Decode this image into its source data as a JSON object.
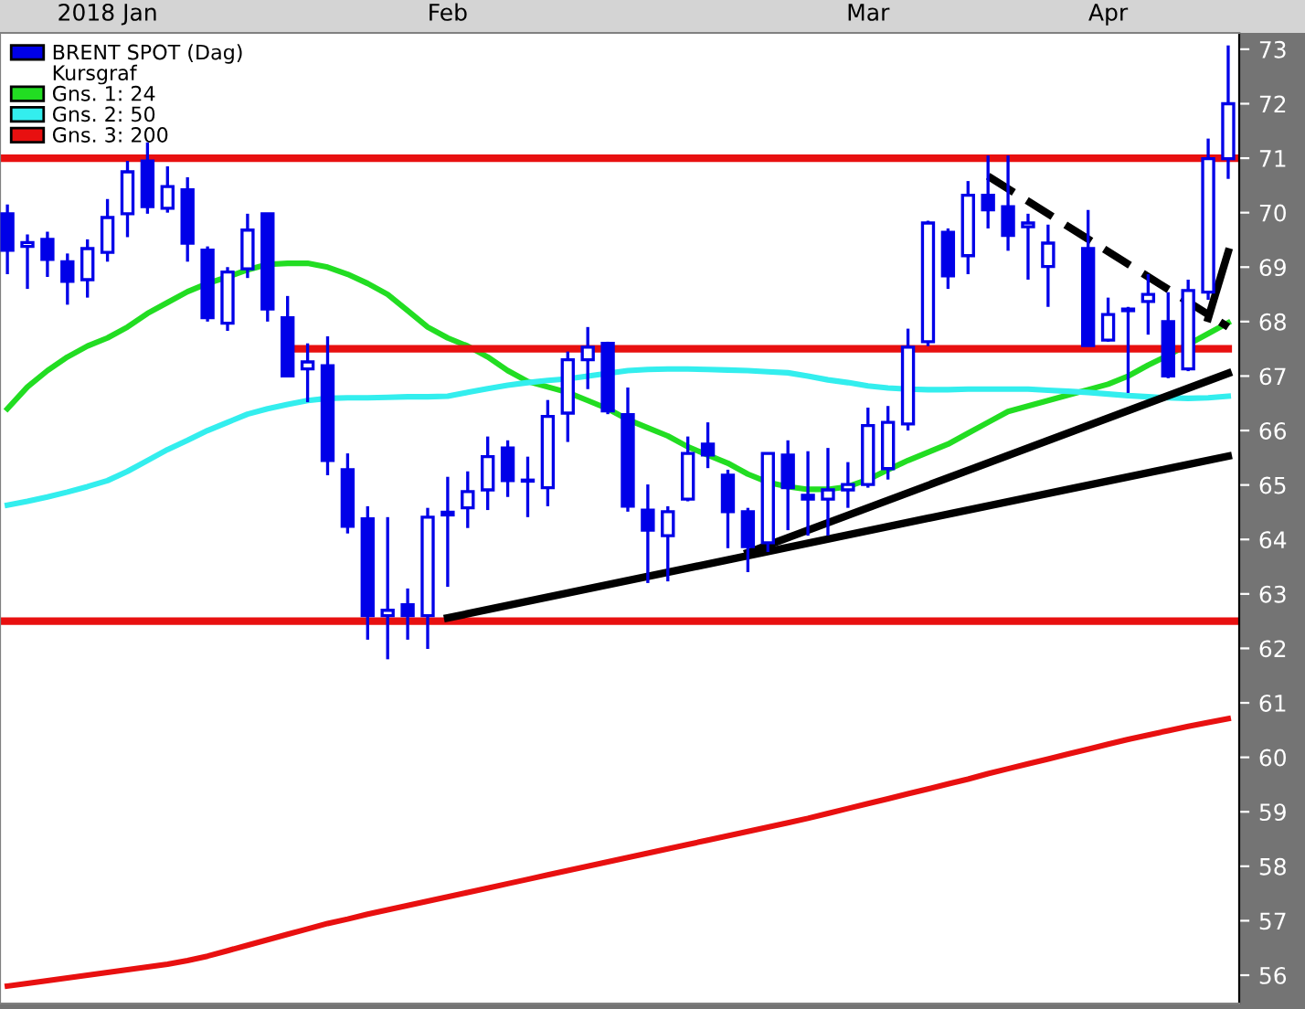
{
  "chart_data": {
    "type": "candlestick",
    "categories": [
      null,
      null,
      null,
      null,
      null,
      "2018 Jan",
      null,
      null,
      null,
      null,
      null,
      null,
      null,
      null,
      null,
      null,
      null,
      null,
      null,
      null,
      null,
      null,
      "Feb",
      null,
      null,
      null,
      null,
      null,
      null,
      null,
      null,
      null,
      null,
      null,
      null,
      null,
      null,
      null,
      null,
      null,
      null,
      null,
      null,
      "Mar",
      null,
      null,
      null,
      null,
      null,
      null,
      null,
      null,
      null,
      null,
      null,
      "Apr",
      null,
      null,
      null,
      null,
      null,
      null
    ],
    "series": [
      {
        "name": "BRENT SPOT (Dag)",
        "color": "#0000e8",
        "ohlc": [
          [
            69.98,
            70.15,
            68.87,
            69.31
          ],
          [
            69.38,
            69.6,
            68.6,
            69.45
          ],
          [
            69.51,
            69.65,
            68.82,
            69.14
          ],
          [
            69.1,
            69.25,
            68.31,
            68.74
          ],
          [
            68.77,
            69.51,
            68.44,
            69.34
          ],
          [
            69.27,
            70.25,
            69.1,
            69.91
          ],
          [
            69.98,
            70.95,
            69.55,
            70.75
          ],
          [
            70.95,
            71.29,
            69.98,
            70.11
          ],
          [
            70.08,
            70.85,
            70.0,
            70.48
          ],
          [
            70.42,
            70.65,
            69.1,
            69.44
          ],
          [
            69.31,
            69.38,
            68.0,
            68.07
          ],
          [
            67.97,
            69.0,
            67.83,
            68.91
          ],
          [
            68.97,
            69.98,
            68.8,
            69.68
          ],
          [
            69.98,
            69.98,
            68.0,
            68.23
          ],
          [
            68.07,
            68.47,
            67.0,
            67.0
          ],
          [
            67.13,
            67.6,
            66.52,
            67.26
          ],
          [
            67.19,
            67.73,
            65.18,
            65.45
          ],
          [
            65.28,
            65.58,
            64.11,
            64.24
          ],
          [
            64.38,
            64.61,
            62.16,
            62.6
          ],
          [
            62.6,
            64.41,
            61.8,
            62.7
          ],
          [
            62.8,
            63.1,
            62.16,
            62.6
          ],
          [
            62.6,
            64.58,
            61.99,
            64.41
          ],
          [
            64.45,
            65.15,
            63.13,
            64.5
          ],
          [
            64.58,
            65.25,
            64.21,
            64.88
          ],
          [
            64.91,
            65.89,
            64.54,
            65.52
          ],
          [
            65.68,
            65.82,
            64.78,
            65.08
          ],
          [
            65.07,
            65.52,
            64.41,
            65.09
          ],
          [
            64.95,
            66.56,
            64.61,
            66.26
          ],
          [
            66.32,
            67.45,
            65.79,
            67.3
          ],
          [
            67.3,
            67.9,
            66.76,
            67.53
          ],
          [
            67.6,
            67.63,
            66.3,
            66.36
          ],
          [
            66.29,
            66.79,
            64.51,
            64.61
          ],
          [
            64.54,
            65.01,
            63.2,
            64.17
          ],
          [
            64.07,
            64.61,
            63.23,
            64.51
          ],
          [
            64.74,
            65.89,
            64.7,
            65.58
          ],
          [
            65.75,
            66.15,
            65.31,
            65.55
          ],
          [
            65.18,
            65.28,
            63.84,
            64.51
          ],
          [
            64.51,
            64.58,
            63.4,
            63.87
          ],
          [
            63.94,
            65.58,
            63.77,
            65.58
          ],
          [
            65.55,
            65.82,
            64.17,
            64.95
          ],
          [
            64.81,
            65.62,
            64.07,
            64.74
          ],
          [
            64.74,
            65.68,
            64.07,
            64.91
          ],
          [
            64.91,
            65.42,
            64.58,
            65.01
          ],
          [
            65.01,
            66.42,
            64.95,
            66.09
          ],
          [
            65.3,
            66.45,
            65.1,
            66.15
          ],
          [
            66.12,
            67.87,
            66.0,
            67.53
          ],
          [
            67.63,
            69.85,
            67.55,
            69.81
          ],
          [
            69.64,
            69.71,
            68.6,
            68.84
          ],
          [
            69.21,
            70.58,
            68.87,
            70.32
          ],
          [
            70.32,
            71.05,
            69.71,
            70.05
          ],
          [
            70.11,
            71.05,
            69.3,
            69.58
          ],
          [
            69.74,
            69.98,
            68.77,
            69.81
          ],
          [
            69.01,
            69.78,
            68.27,
            69.44
          ],
          null,
          [
            69.34,
            70.05,
            67.56,
            67.56
          ],
          [
            67.66,
            68.44,
            67.63,
            68.13
          ],
          [
            68.2,
            68.27,
            66.69,
            68.23
          ],
          [
            68.37,
            68.87,
            67.76,
            68.5
          ],
          [
            68.0,
            68.54,
            66.96,
            67.0
          ],
          [
            67.13,
            68.77,
            67.09,
            68.57
          ],
          [
            68.54,
            71.36,
            68.4,
            70.99
          ],
          [
            70.99,
            73.07,
            70.62,
            72.0
          ]
        ]
      },
      {
        "type": "line",
        "name": "Gns. 1: 24",
        "color": "#22dd22",
        "values": [
          66.4,
          66.8,
          67.1,
          67.35,
          67.55,
          67.7,
          67.9,
          68.15,
          68.35,
          68.55,
          68.7,
          68.82,
          68.95,
          69.05,
          69.07,
          69.07,
          69.0,
          68.87,
          68.7,
          68.5,
          68.2,
          67.9,
          67.7,
          67.55,
          67.35,
          67.1,
          66.9,
          66.8,
          66.7,
          66.55,
          66.4,
          66.2,
          66.05,
          65.9,
          65.7,
          65.55,
          65.4,
          65.2,
          65.05,
          64.97,
          64.92,
          64.92,
          64.97,
          65.1,
          65.28,
          65.45,
          65.6,
          65.75,
          65.95,
          66.15,
          66.35,
          66.45,
          66.55,
          66.65,
          66.75,
          66.85,
          67.0,
          67.2,
          67.38,
          67.58,
          67.78,
          67.98
        ]
      },
      {
        "type": "line",
        "name": "Gns. 2: 50",
        "color": "#33eeee",
        "values": [
          64.63,
          64.7,
          64.78,
          64.87,
          64.97,
          65.08,
          65.25,
          65.45,
          65.65,
          65.82,
          66.0,
          66.15,
          66.3,
          66.4,
          66.48,
          66.55,
          66.59,
          66.6,
          66.6,
          66.61,
          66.62,
          66.62,
          66.63,
          66.7,
          66.77,
          66.83,
          66.88,
          66.92,
          66.95,
          67.0,
          67.05,
          67.1,
          67.12,
          67.13,
          67.13,
          67.12,
          67.11,
          67.1,
          67.08,
          67.06,
          67.0,
          66.93,
          66.88,
          66.82,
          66.78,
          66.76,
          66.75,
          66.75,
          66.76,
          66.76,
          66.76,
          66.76,
          66.74,
          66.72,
          66.7,
          66.67,
          66.64,
          66.62,
          66.6,
          66.59,
          66.6,
          66.63
        ]
      },
      {
        "type": "line",
        "name": "Gns. 3: 200",
        "color": "#e81010",
        "values": [
          55.8,
          55.85,
          55.9,
          55.95,
          56.0,
          56.05,
          56.1,
          56.15,
          56.2,
          56.27,
          56.35,
          56.45,
          56.55,
          56.65,
          56.75,
          56.85,
          56.95,
          57.03,
          57.12,
          57.2,
          57.28,
          57.36,
          57.44,
          57.52,
          57.6,
          57.68,
          57.76,
          57.84,
          57.92,
          58.0,
          58.08,
          58.16,
          58.24,
          58.32,
          58.4,
          58.48,
          58.56,
          58.64,
          58.72,
          58.8,
          58.88,
          58.97,
          59.06,
          59.15,
          59.24,
          59.33,
          59.42,
          59.51,
          59.6,
          59.7,
          59.79,
          59.88,
          59.97,
          60.06,
          60.15,
          60.24,
          60.33,
          60.41,
          60.49,
          60.57,
          60.64,
          60.71
        ]
      },
      {
        "type": "line",
        "color": "#e81010",
        "values": [
          null,
          null,
          null,
          null,
          null,
          null,
          null,
          null,
          null,
          null,
          null,
          null,
          null,
          null,
          67.5,
          null,
          null,
          null,
          null,
          null,
          null,
          null,
          null,
          null,
          null,
          null,
          null,
          null,
          null,
          null,
          null,
          null,
          null,
          null,
          null,
          null,
          null,
          null,
          null,
          null,
          null,
          null,
          null,
          null,
          null,
          null,
          null,
          null,
          null,
          null,
          null,
          null,
          null,
          null,
          null,
          null,
          null,
          null,
          null,
          null,
          null,
          67.5
        ]
      },
      {
        "type": "line",
        "color": "#000000",
        "values": [
          null,
          null,
          null,
          null,
          null,
          null,
          null,
          null,
          null,
          null,
          null,
          null,
          null,
          null,
          null,
          null,
          null,
          null,
          null,
          null,
          null,
          null,
          62.56,
          null,
          null,
          null,
          null,
          null,
          null,
          null,
          null,
          null,
          null,
          null,
          null,
          null,
          null,
          null,
          null,
          null,
          null,
          null,
          null,
          null,
          null,
          null,
          null,
          null,
          null,
          null,
          null,
          null,
          null,
          null,
          null,
          null,
          null,
          null,
          null,
          null,
          null,
          65.53
        ]
      },
      {
        "type": "line",
        "color": "#000000",
        "values": [
          null,
          null,
          null,
          null,
          null,
          null,
          null,
          null,
          null,
          null,
          null,
          null,
          null,
          null,
          null,
          null,
          null,
          null,
          null,
          null,
          null,
          null,
          null,
          null,
          null,
          null,
          null,
          null,
          null,
          null,
          null,
          null,
          null,
          null,
          null,
          null,
          null,
          63.76,
          null,
          null,
          null,
          null,
          null,
          null,
          null,
          null,
          null,
          null,
          null,
          null,
          null,
          null,
          null,
          null,
          null,
          null,
          null,
          null,
          null,
          null,
          null,
          67.05
        ]
      },
      {
        "type": "line",
        "color": "#000000",
        "line_style": "dashed",
        "values": [
          null,
          null,
          null,
          null,
          null,
          null,
          null,
          null,
          null,
          null,
          null,
          null,
          null,
          null,
          null,
          null,
          null,
          null,
          null,
          null,
          null,
          null,
          null,
          null,
          null,
          null,
          null,
          null,
          null,
          null,
          null,
          null,
          null,
          null,
          null,
          null,
          null,
          null,
          null,
          null,
          null,
          null,
          null,
          null,
          null,
          null,
          null,
          null,
          null,
          70.67,
          null,
          null,
          null,
          null,
          null,
          null,
          null,
          null,
          null,
          null,
          null,
          67.9
        ]
      },
      {
        "type": "line",
        "color": "#000000",
        "values": [
          null,
          null,
          null,
          null,
          null,
          null,
          null,
          null,
          null,
          null,
          null,
          null,
          null,
          null,
          null,
          null,
          null,
          null,
          null,
          null,
          null,
          null,
          null,
          null,
          null,
          null,
          null,
          null,
          null,
          null,
          null,
          null,
          null,
          null,
          null,
          null,
          null,
          null,
          null,
          null,
          null,
          null,
          null,
          null,
          null,
          null,
          null,
          null,
          null,
          null,
          null,
          null,
          null,
          null,
          null,
          null,
          null,
          null,
          null,
          null,
          68.06,
          69.28
        ]
      }
    ],
    "ref_lines": [
      {
        "axis": "y",
        "value": 71,
        "color": "#e81010"
      },
      {
        "axis": "y",
        "value": 62.5,
        "color": "#e81010"
      }
    ],
    "annotations": [
      "Kursgraf"
    ],
    "ylim": [
      55.48,
      73.3
    ],
    "yticks": [
      56,
      57,
      58,
      59,
      60,
      61,
      62,
      63,
      64,
      65,
      66,
      67,
      68,
      69,
      70,
      71,
      72,
      73
    ],
    "grid": false,
    "legend": "top left"
  }
}
